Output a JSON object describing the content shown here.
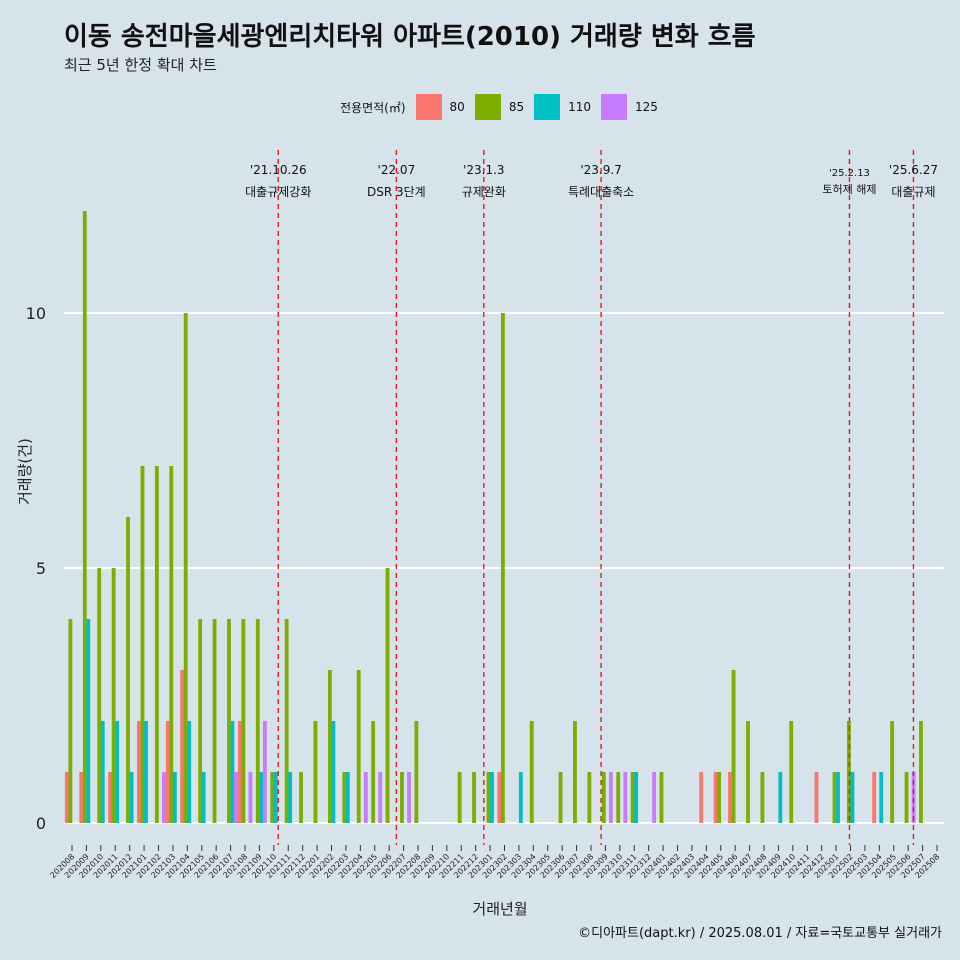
{
  "title": "이동 송전마을세광엔리치타워 아파트(2010) 거래량 변화 흐름",
  "subtitle": "최근 5년 한정 확대 차트",
  "caption": "©디아파트(dapt.kr) / 2025.08.01 / 자료=국토교통부 실거래가",
  "colors": {
    "background": "#d6e3ea",
    "grid": "#ffffff",
    "event_line": "#e41a1c"
  },
  "chart_data": {
    "type": "bar",
    "xlabel": "거래년월",
    "ylabel": "거래량(건)",
    "ylim": [
      0,
      12
    ],
    "yticks": [
      0,
      5,
      10
    ],
    "legend": {
      "title": "전용면적(㎡)",
      "position": "top"
    },
    "categories": [
      "202008",
      "202009",
      "202010",
      "202011",
      "202012",
      "202101",
      "202102",
      "202103",
      "202104",
      "202105",
      "202106",
      "202107",
      "202108",
      "202109",
      "202110",
      "202111",
      "202112",
      "202201",
      "202202",
      "202203",
      "202204",
      "202205",
      "202206",
      "202207",
      "202208",
      "202209",
      "202210",
      "202211",
      "202212",
      "202301",
      "202302",
      "202303",
      "202304",
      "202305",
      "202306",
      "202307",
      "202308",
      "202309",
      "202310",
      "202311",
      "202312",
      "202401",
      "202402",
      "202403",
      "202404",
      "202405",
      "202406",
      "202407",
      "202408",
      "202409",
      "202410",
      "202411",
      "202412",
      "202501",
      "202502",
      "202503",
      "202504",
      "202505",
      "202506",
      "202507",
      "202508"
    ],
    "series": [
      {
        "name": "80",
        "color": "#f8766d",
        "values": [
          1,
          1,
          0,
          1,
          0,
          2,
          0,
          2,
          3,
          0,
          0,
          0,
          2,
          0,
          0,
          0,
          0,
          0,
          0,
          0,
          0,
          0,
          0,
          0,
          0,
          0,
          0,
          0,
          0,
          0,
          1,
          0,
          0,
          0,
          0,
          0,
          0,
          0,
          0,
          0,
          0,
          0,
          0,
          0,
          1,
          1,
          1,
          0,
          0,
          0,
          0,
          0,
          1,
          0,
          0,
          0,
          1,
          0,
          0,
          0,
          0
        ]
      },
      {
        "name": "85",
        "color": "#7cae00",
        "values": [
          4,
          12,
          5,
          5,
          6,
          7,
          7,
          7,
          10,
          4,
          4,
          4,
          4,
          4,
          1,
          4,
          1,
          2,
          3,
          1,
          3,
          2,
          5,
          1,
          2,
          0,
          0,
          1,
          1,
          1,
          10,
          0,
          2,
          0,
          1,
          2,
          1,
          1,
          1,
          1,
          0,
          1,
          0,
          0,
          0,
          1,
          3,
          2,
          1,
          0,
          2,
          0,
          0,
          1,
          2,
          0,
          0,
          2,
          1,
          2,
          0
        ]
      },
      {
        "name": "110",
        "color": "#00bfc4",
        "values": [
          0,
          4,
          2,
          2,
          1,
          2,
          0,
          1,
          2,
          1,
          0,
          2,
          0,
          1,
          1,
          1,
          0,
          0,
          2,
          1,
          0,
          0,
          0,
          0,
          0,
          0,
          0,
          0,
          0,
          1,
          0,
          1,
          0,
          0,
          0,
          0,
          0,
          0,
          0,
          1,
          0,
          0,
          0,
          0,
          0,
          0,
          0,
          0,
          0,
          1,
          0,
          0,
          0,
          1,
          1,
          0,
          1,
          0,
          0,
          0,
          0
        ]
      },
      {
        "name": "125",
        "color": "#c77cff",
        "values": [
          0,
          0,
          0,
          0,
          0,
          0,
          1,
          0,
          0,
          0,
          0,
          1,
          1,
          2,
          0,
          0,
          0,
          0,
          0,
          0,
          1,
          1,
          0,
          1,
          0,
          0,
          0,
          0,
          0,
          0,
          0,
          0,
          0,
          0,
          0,
          0,
          0,
          1,
          1,
          0,
          1,
          0,
          0,
          0,
          0,
          0,
          0,
          0,
          0,
          0,
          0,
          0,
          0,
          0,
          0,
          0,
          0,
          0,
          1,
          0,
          0
        ]
      }
    ],
    "events": [
      {
        "date": "2021-10-26",
        "label_date": "'21.10.26",
        "label_text": "대출규제강화"
      },
      {
        "date": "2022-07-01",
        "label_date": "'22.07",
        "label_text": "DSR 3단계"
      },
      {
        "date": "2023-01-03",
        "label_date": "'23.1.3",
        "label_text": "규제완화"
      },
      {
        "date": "2023-09-07",
        "label_date": "'23.9.7",
        "label_text": "특례대출축소"
      },
      {
        "date": "2025-02-13",
        "label_date": "'25.2.13",
        "label_text": "토허제 해제"
      },
      {
        "date": "2025-06-27",
        "label_date": "'25.6.27",
        "label_text": "대출규제"
      }
    ]
  }
}
